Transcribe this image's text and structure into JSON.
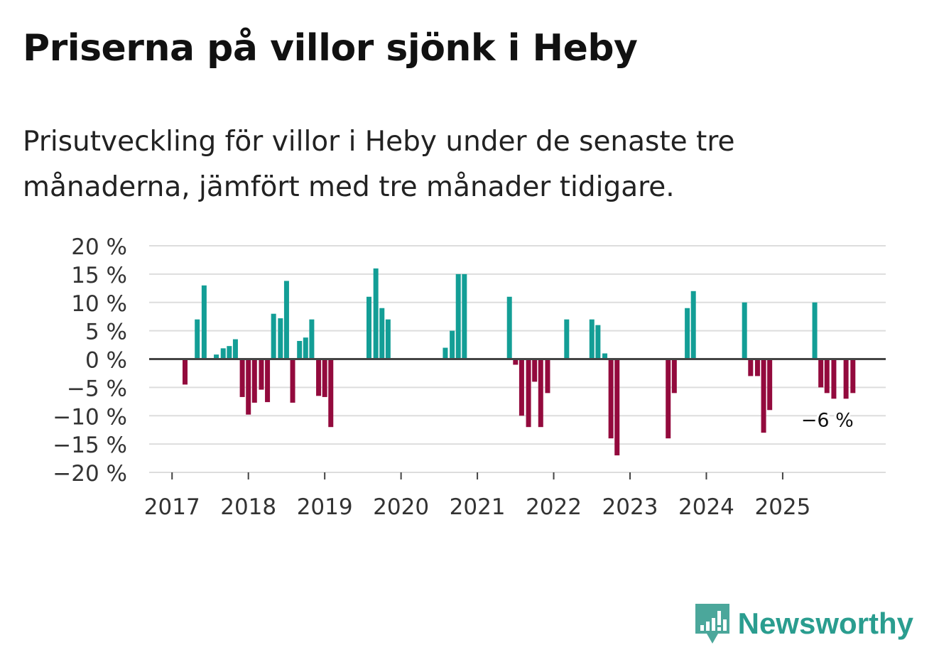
{
  "title": "Priserna på villor sjönk i Heby",
  "subtitle": "Prisutveckling för villor i Heby under de senaste tre månaderna, jämfört med tre månader tidigare.",
  "brand": "Newsworthy",
  "colors": {
    "positive": "#139e96",
    "negative": "#930a3d",
    "grid": "#dddddd",
    "zero_line": "#444444",
    "axis_text": "#333333"
  },
  "chart_data": {
    "type": "bar",
    "y_tick_labels": [
      "20 %",
      "15 %",
      "10 %",
      "5 %",
      "0 %",
      "−5 %",
      "−10 %",
      "−15 %",
      "−20 %"
    ],
    "y_ticks": [
      20,
      15,
      10,
      5,
      0,
      -5,
      -10,
      -15,
      -20
    ],
    "ylim": [
      -20,
      20
    ],
    "xlim": [
      2016.7,
      2026.35
    ],
    "x_tick_labels": [
      "2017",
      "2018",
      "2019",
      "2020",
      "2021",
      "2022",
      "2023",
      "2024",
      "2025"
    ],
    "x_ticks": [
      2017,
      2018,
      2019,
      2020,
      2021,
      2022,
      2023,
      2024,
      2025
    ],
    "series": [
      {
        "x": [
          2017.17,
          2017.33,
          2017.42,
          2017.58,
          2017.67,
          2017.75,
          2017.83,
          2017.92,
          2018.0,
          2018.08,
          2018.17,
          2018.25,
          2018.33,
          2018.42,
          2018.5,
          2018.58,
          2018.67,
          2018.75,
          2018.83,
          2018.92,
          2019.0,
          2019.08,
          2019.58,
          2019.67,
          2019.75,
          2019.83,
          2020.58,
          2020.67,
          2020.75,
          2020.83,
          2021.42,
          2021.5,
          2021.58,
          2021.67,
          2021.75,
          2021.83,
          2021.92,
          2022.17,
          2022.5,
          2022.58,
          2022.67,
          2022.75,
          2022.83,
          2023.5,
          2023.58,
          2023.75,
          2023.83,
          2024.5,
          2024.58,
          2024.67,
          2024.75,
          2024.83,
          2025.42,
          2025.5,
          2025.58,
          2025.67,
          2025.83,
          2025.92
        ],
        "values": [
          -4.5,
          7,
          13,
          0.8,
          1.9,
          2.3,
          3.5,
          -6.7,
          -9.8,
          -7.7,
          -5.4,
          -7.6,
          8,
          7.2,
          13.8,
          -7.7,
          3.2,
          3.8,
          7,
          -6.5,
          -6.7,
          -12,
          11,
          16,
          9,
          7,
          2,
          5,
          15,
          15,
          11,
          -1,
          -10,
          -12,
          -4,
          -12,
          -6,
          7,
          7,
          6,
          1,
          -14,
          -17,
          -14,
          -6,
          9,
          12,
          10,
          -3,
          -3,
          -13,
          -9,
          10,
          -5,
          -6,
          -7,
          -7,
          -6
        ]
      }
    ],
    "annotation": {
      "text": "−6 %",
      "x": 2025.92,
      "y": -6
    }
  }
}
